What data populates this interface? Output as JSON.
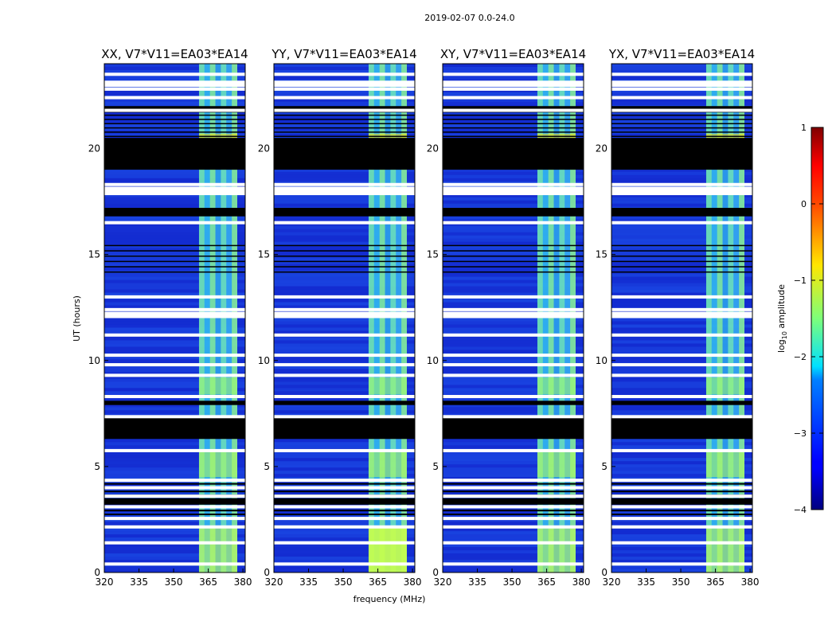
{
  "chart_data": {
    "type": "heatmap",
    "title": "2019-02-07 0.0-24.0",
    "xlabel": "frequency (MHz)",
    "ylabel": "UT (hours)",
    "xlim": [
      320,
      381
    ],
    "ylim": [
      0,
      24
    ],
    "xticks": [
      320,
      335,
      350,
      365,
      380
    ],
    "yticks": [
      0,
      5,
      10,
      15,
      20
    ],
    "panels": [
      {
        "title": "XX, V7*V11=EA03*EA14"
      },
      {
        "title": "YY, V7*V11=EA03*EA14"
      },
      {
        "title": "XY, V7*V11=EA03*EA14"
      },
      {
        "title": "YX, V7*V11=EA03*EA14"
      }
    ],
    "colorbar": {
      "label": "log10 amplitude",
      "min": -4,
      "max": 1,
      "ticks": [
        1,
        0,
        -1,
        -2,
        -3,
        -4
      ],
      "tick_labels": [
        "1",
        "0",
        "−1",
        "−2",
        "−3",
        "−4"
      ]
    },
    "bright_band_mhz": [
      361,
      381
    ],
    "white_gaps_ut": [
      0.4,
      1.4,
      2.15,
      2.55,
      3.1,
      3.6,
      4.0,
      4.35,
      5.75,
      7.35,
      8.3,
      9.3,
      9.8,
      10.25,
      11.2,
      12.4,
      13.0,
      16.5,
      18.3,
      21.8,
      22.4,
      22.8,
      23.5
    ],
    "black_bands_ut": [
      [
        6.3,
        7.3
      ],
      [
        7.9,
        8.1
      ],
      [
        3.2,
        3.5
      ],
      [
        16.8,
        17.2
      ],
      [
        19.0,
        20.5
      ],
      [
        21.7,
        22.0
      ]
    ]
  }
}
